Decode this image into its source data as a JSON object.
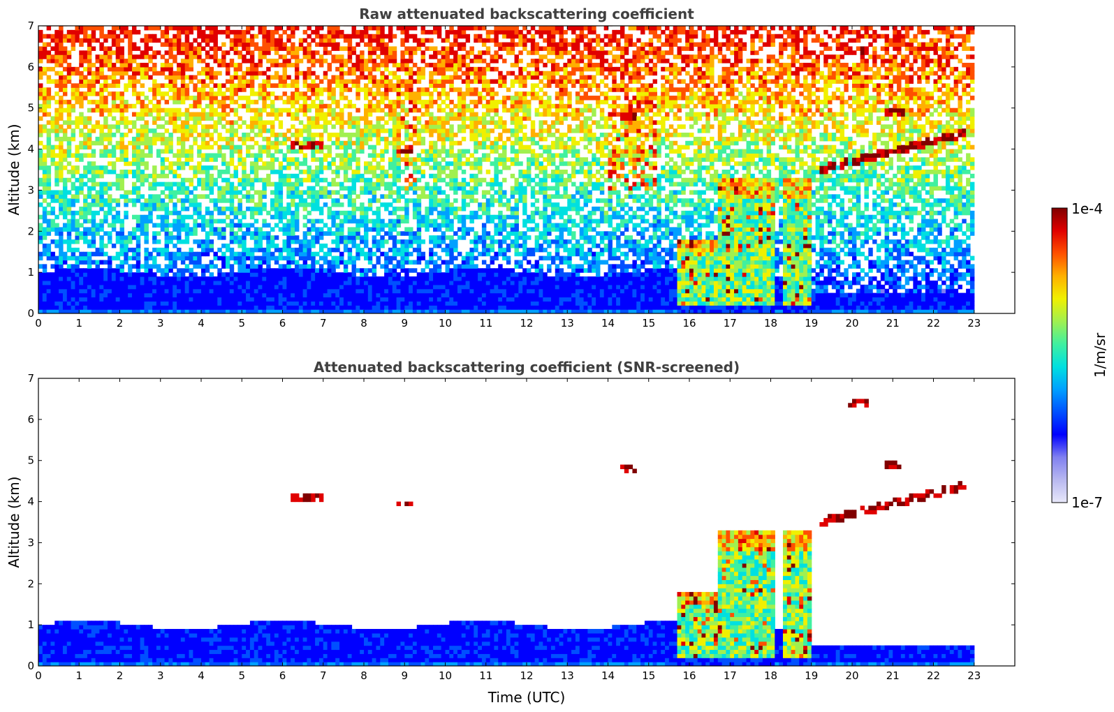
{
  "chart_data": [
    {
      "id": "raw",
      "type": "heatmap",
      "title": "Raw attenuated backscattering coefficient",
      "xlabel": "",
      "ylabel": "Altitude (km)",
      "xlim": [
        0,
        24
      ],
      "ylim": [
        0,
        7
      ],
      "x_ticks": [
        "0",
        "1",
        "2",
        "3",
        "4",
        "5",
        "6",
        "7",
        "8",
        "9",
        "10",
        "11",
        "12",
        "13",
        "14",
        "15",
        "16",
        "17",
        "18",
        "19",
        "20",
        "21",
        "22",
        "23"
      ],
      "y_ticks": [
        "0",
        "1",
        "2",
        "3",
        "4",
        "5",
        "6",
        "7"
      ],
      "data_time_range": [
        0,
        23
      ],
      "grid": false
    },
    {
      "id": "snr",
      "type": "heatmap",
      "title": "Attenuated backscattering coefficient (SNR-screened)",
      "xlabel": "Time (UTC)",
      "ylabel": "Altitude (km)",
      "xlim": [
        0,
        24
      ],
      "ylim": [
        0,
        7
      ],
      "x_ticks": [
        "0",
        "1",
        "2",
        "3",
        "4",
        "5",
        "6",
        "7",
        "8",
        "9",
        "10",
        "11",
        "12",
        "13",
        "14",
        "15",
        "16",
        "17",
        "18",
        "19",
        "20",
        "21",
        "22",
        "23"
      ],
      "y_ticks": [
        "0",
        "1",
        "2",
        "3",
        "4",
        "5",
        "6",
        "7"
      ],
      "data_time_range": [
        0,
        23
      ],
      "grid": false
    }
  ],
  "colorbar": {
    "label": "1/m/sr",
    "min_label": "1e-7",
    "max_label": "1e-4",
    "scale": "log",
    "colors": [
      "#e8e8fa",
      "#b8b8f0",
      "#8080f0",
      "#0000ff",
      "#0050ff",
      "#00a0ff",
      "#00e0e0",
      "#40f0a0",
      "#a0f050",
      "#f0f000",
      "#ffb000",
      "#ff5000",
      "#e00000",
      "#800000"
    ]
  },
  "features": {
    "cloud_layers": [
      {
        "t0": 6.2,
        "t1": 7.0,
        "alt": 4.1
      },
      {
        "t0": 8.8,
        "t1": 9.2,
        "alt": 3.95
      },
      {
        "t0": 14.3,
        "t1": 14.7,
        "alt": 4.8
      },
      {
        "t0": 19.2,
        "t1": 22.8,
        "alt": 3.5
      },
      {
        "t0": 20.8,
        "t1": 21.3,
        "alt": 4.9
      },
      {
        "t0": 19.9,
        "t1": 20.4,
        "alt": 6.4
      }
    ],
    "precip_columns": [
      {
        "t0": 15.65,
        "t1": 16.7,
        "top": 1.8
      },
      {
        "t0": 16.7,
        "t1": 18.1,
        "top": 3.3
      },
      {
        "t0": 18.3,
        "t1": 19.0,
        "top": 3.3
      }
    ],
    "boundary_layer_top_km": 1.0
  }
}
